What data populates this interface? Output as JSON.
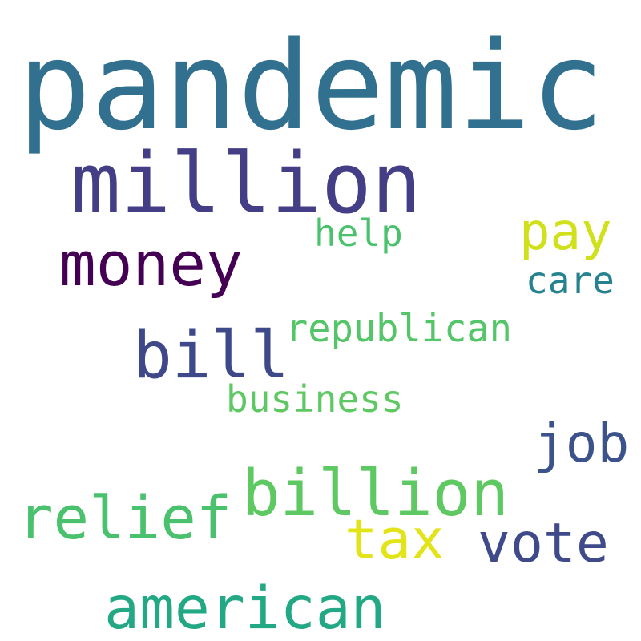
{
  "words": [
    {
      "text": "pandemic",
      "color": "#31708e"
    },
    {
      "text": "million",
      "color": "#433e85"
    },
    {
      "text": "pay",
      "color": "#d0e11c"
    },
    {
      "text": "help",
      "color": "#4ac16d"
    },
    {
      "text": "money",
      "color": "#440154"
    },
    {
      "text": "care",
      "color": "#26828e"
    },
    {
      "text": "republican",
      "color": "#54c568"
    },
    {
      "text": "bill",
      "color": "#3e4989"
    },
    {
      "text": "business",
      "color": "#5ec962"
    },
    {
      "text": "job",
      "color": "#3b528b"
    },
    {
      "text": "billion",
      "color": "#5ec962"
    },
    {
      "text": "relief",
      "color": "#4ac16d"
    },
    {
      "text": "tax",
      "color": "#e2e418"
    },
    {
      "text": "vote",
      "color": "#3e4a89"
    },
    {
      "text": "american",
      "color": "#22a884"
    }
  ]
}
